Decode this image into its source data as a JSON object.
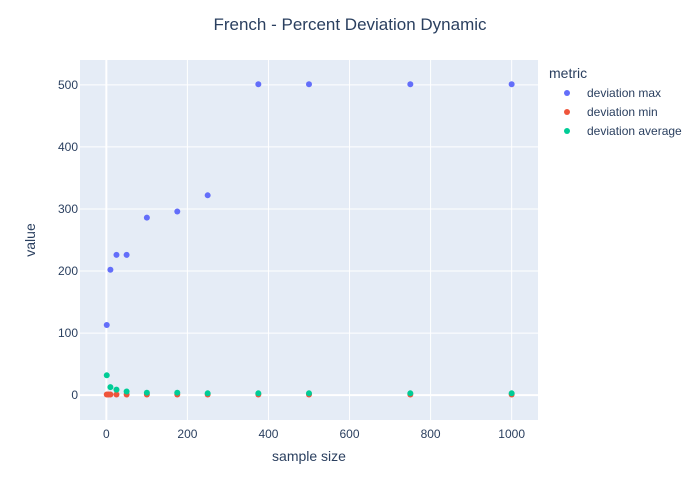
{
  "chart_data": {
    "type": "scatter",
    "title": "French - Percent Deviation Dynamic",
    "xlabel": "sample size",
    "ylabel": "value",
    "xlim": [
      -65,
      1065
    ],
    "ylim": [
      -40,
      540
    ],
    "x_ticks": [
      0,
      200,
      400,
      600,
      800,
      1000
    ],
    "y_ticks": [
      0,
      100,
      200,
      300,
      400,
      500
    ],
    "grid": true,
    "legend": {
      "title": "metric",
      "placement": "right"
    },
    "series": [
      {
        "name": "deviation max",
        "color": "#636efa",
        "x": [
          1,
          10,
          25,
          50,
          100,
          175,
          250,
          375,
          500,
          750,
          1000
        ],
        "y": [
          113,
          202,
          226,
          226,
          286,
          296,
          322,
          501,
          501,
          501,
          501
        ]
      },
      {
        "name": "deviation min",
        "color": "#ef553b",
        "x": [
          1,
          5,
          10,
          25,
          50,
          100,
          175,
          250,
          375,
          500,
          750,
          1000
        ],
        "y": [
          1,
          1,
          1,
          1,
          1,
          1,
          1,
          1,
          1,
          1,
          1,
          1
        ]
      },
      {
        "name": "deviation average",
        "color": "#00cc96",
        "x": [
          1,
          10,
          25,
          50,
          100,
          175,
          250,
          375,
          500,
          750,
          1000
        ],
        "y": [
          32,
          13,
          9,
          6,
          4,
          4,
          3,
          3,
          3,
          3,
          3
        ]
      }
    ]
  }
}
